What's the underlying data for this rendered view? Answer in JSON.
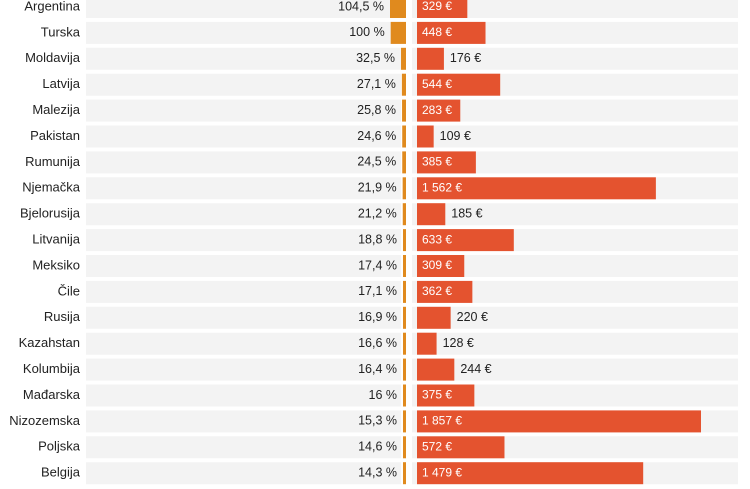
{
  "chart_data": {
    "type": "bar",
    "categories": [
      "Argentina",
      "Turska",
      "Moldavija",
      "Latvija",
      "Malezija",
      "Pakistan",
      "Rumunija",
      "Njemačka",
      "Bjelorusija",
      "Litvanija",
      "Meksiko",
      "Čile",
      "Rusija",
      "Kazahstan",
      "Kolumbija",
      "Mađarska",
      "Nizozemska",
      "Poljska",
      "Belgija"
    ],
    "series": [
      {
        "values": [
          104.5,
          100,
          32.5,
          27.1,
          25.8,
          24.6,
          24.5,
          21.9,
          21.2,
          18.8,
          17.4,
          17.1,
          16.9,
          16.6,
          16.4,
          16,
          15.3,
          14.6,
          14.3
        ],
        "labels": [
          "104,5 %",
          "100 %",
          "32,5 %",
          "27,1 %",
          "25,8 %",
          "24,6 %",
          "24,5 %",
          "21,9 %",
          "21,2 %",
          "18,8 %",
          "17,4 %",
          "17,1 %",
          "16,9 %",
          "16,6 %",
          "16,4 %",
          "16 %",
          "15,3 %",
          "14,6 %",
          "14,3 %"
        ],
        "color": "#e08a1e"
      },
      {
        "values": [
          329,
          448,
          176,
          544,
          283,
          109,
          385,
          1562,
          185,
          633,
          309,
          362,
          220,
          128,
          244,
          375,
          1857,
          572,
          1479
        ],
        "labels": [
          "329 €",
          "448 €",
          "176 €",
          "544 €",
          "283 €",
          "109 €",
          "385 €",
          "1 562 €",
          "185 €",
          "633 €",
          "309 €",
          "362 €",
          "220 €",
          "128 €",
          "244 €",
          "375 €",
          "1 857 €",
          "572 €",
          "1 479 €"
        ],
        "color": "#e4532f"
      }
    ],
    "colors": {
      "row_background": "#f3f3f3",
      "text": "#222222",
      "label_inside": "#ffffff"
    }
  }
}
